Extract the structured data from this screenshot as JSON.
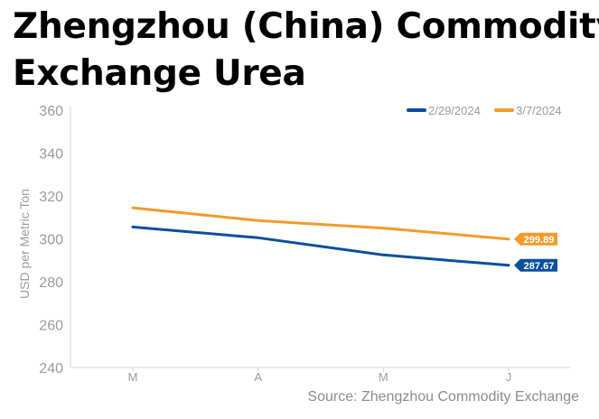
{
  "title_lines": [
    "Zhengzhou (China) Commodity",
    "Exchange Urea"
  ],
  "source": "Source: Zhengzhou Commodity Exchange",
  "chart_data": {
    "type": "line",
    "categories": [
      "M",
      "A",
      "M",
      "J"
    ],
    "ylabel": "USD per Metric Ton",
    "ylim": [
      240,
      360
    ],
    "yticks": [
      240,
      260,
      280,
      300,
      320,
      340,
      360
    ],
    "grid": false,
    "legend": "top-right",
    "series": [
      {
        "name": "2/29/2024",
        "color": "#0a4f9c",
        "values": [
          305.5,
          300.5,
          292.5,
          287.67
        ],
        "end_label": "287.67"
      },
      {
        "name": "3/7/2024",
        "color": "#f39a2b",
        "values": [
          314.5,
          308.5,
          305.0,
          299.89
        ],
        "end_label": "299.89"
      }
    ]
  }
}
